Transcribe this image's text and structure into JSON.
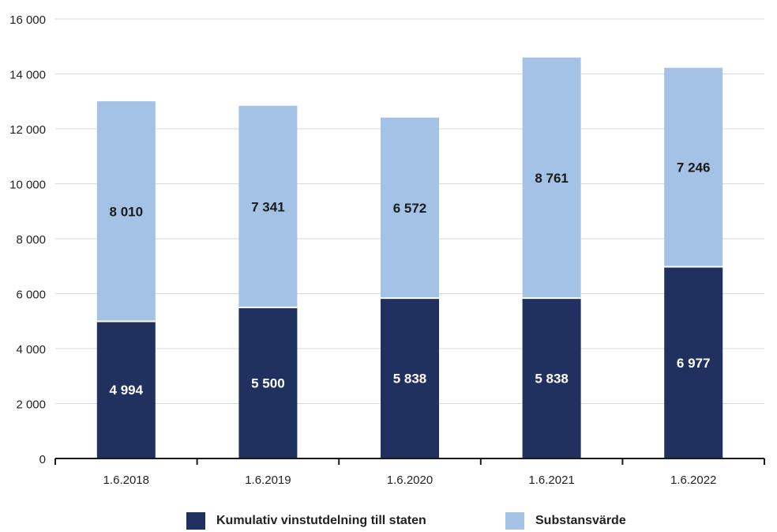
{
  "colors": {
    "dark": "#20305f",
    "light": "#a4c2e5",
    "grid": "#d9d9d9",
    "axis": "#1a1a1a"
  },
  "chart_data": {
    "type": "bar",
    "stacked": true,
    "categories": [
      "1.6.2018",
      "1.6.2019",
      "1.6.2020",
      "1.6.2021",
      "1.6.2022"
    ],
    "series": [
      {
        "name": "Kumulativ vinstutdelning till staten",
        "values": [
          4994,
          5500,
          5838,
          5838,
          6977
        ],
        "labels": [
          "4 994",
          "5 500",
          "5 838",
          "5 838",
          "6 977"
        ]
      },
      {
        "name": "Substansvärde",
        "values": [
          8010,
          7341,
          6572,
          8761,
          7246
        ],
        "labels": [
          "8 010",
          "7 341",
          "6 572",
          "8 761",
          "7 246"
        ]
      }
    ],
    "yticks": [
      "0",
      "2 000",
      "4 000",
      "6 000",
      "8 000",
      "10 000",
      "12 000",
      "14 000",
      "16 000"
    ],
    "ylim": [
      0,
      16000
    ],
    "grid": true,
    "legend_position": "bottom"
  }
}
